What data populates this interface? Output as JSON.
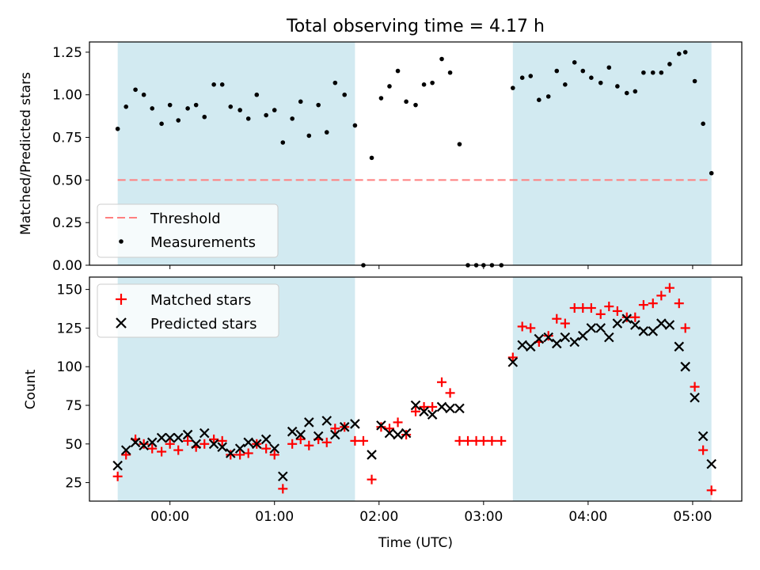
{
  "figure": {
    "title": "Total observing time = 4.17 h",
    "xlabel": "Time (UTC)",
    "x_tick_labels": [
      "00:00",
      "01:00",
      "02:00",
      "03:00",
      "04:00",
      "05:00"
    ],
    "x_ticks_hours": [
      0,
      1,
      2,
      3,
      4,
      5
    ],
    "xlim_hours": [
      -0.77,
      5.47
    ],
    "shaded_color": "#add8e6",
    "shaded_intervals_hours": [
      [
        -0.5,
        1.77
      ],
      [
        3.28,
        5.18
      ]
    ]
  },
  "chart_data": [
    {
      "type": "scatter",
      "ylabel": "Matched/Predicted stars",
      "ylim": [
        0,
        1.31
      ],
      "yticks": [
        0,
        0.25,
        0.5,
        0.75,
        1.0,
        1.25
      ],
      "ytick_labels": [
        "0.00",
        "0.25",
        "0.50",
        "0.75",
        "1.00",
        "1.25"
      ],
      "legend_position": "lower-left",
      "threshold": {
        "name": "Threshold",
        "value": 0.5,
        "color": "#ff7f7f",
        "style": "dashed"
      },
      "series": [
        {
          "name": "Measurements",
          "color": "#000000",
          "marker": "dot",
          "x": [
            -0.5,
            -0.42,
            -0.33,
            -0.25,
            -0.17,
            -0.08,
            0.0,
            0.08,
            0.17,
            0.25,
            0.33,
            0.42,
            0.5,
            0.58,
            0.67,
            0.75,
            0.83,
            0.92,
            1.0,
            1.08,
            1.17,
            1.25,
            1.33,
            1.42,
            1.5,
            1.58,
            1.67,
            1.77,
            1.85,
            1.93,
            2.02,
            2.1,
            2.18,
            2.26,
            2.35,
            2.43,
            2.51,
            2.6,
            2.68,
            2.77,
            2.85,
            2.93,
            3.0,
            3.08,
            3.17,
            3.28,
            3.37,
            3.45,
            3.53,
            3.62,
            3.7,
            3.78,
            3.87,
            3.95,
            4.03,
            4.12,
            4.2,
            4.28,
            4.37,
            4.45,
            4.53,
            4.62,
            4.7,
            4.78,
            4.87,
            4.93,
            5.02,
            5.1,
            5.18
          ],
          "y": [
            0.8,
            0.93,
            1.03,
            1.0,
            0.92,
            0.83,
            0.94,
            0.85,
            0.92,
            0.94,
            0.87,
            1.06,
            1.06,
            0.93,
            0.91,
            0.86,
            1.0,
            0.88,
            0.91,
            0.72,
            0.86,
            0.96,
            0.76,
            0.94,
            0.78,
            1.07,
            1.0,
            0.82,
            0.0,
            0.63,
            0.98,
            1.05,
            1.14,
            0.96,
            0.94,
            1.06,
            1.07,
            1.21,
            1.13,
            0.71,
            0.0,
            0.0,
            0.0,
            0.0,
            0.0,
            1.04,
            1.1,
            1.11,
            0.97,
            0.99,
            1.14,
            1.06,
            1.19,
            1.14,
            1.1,
            1.07,
            1.16,
            1.05,
            1.01,
            1.02,
            1.13,
            1.13,
            1.13,
            1.18,
            1.24,
            1.25,
            1.08,
            0.83,
            0.54
          ]
        }
      ]
    },
    {
      "type": "scatter",
      "ylabel": "Count",
      "ylim": [
        13,
        158
      ],
      "yticks": [
        25,
        50,
        75,
        100,
        125,
        150
      ],
      "ytick_labels": [
        "25",
        "50",
        "75",
        "100",
        "125",
        "150"
      ],
      "legend_position": "upper-left",
      "series": [
        {
          "name": "Matched stars",
          "color": "#ff0000",
          "marker": "plus",
          "x": [
            -0.5,
            -0.42,
            -0.33,
            -0.25,
            -0.17,
            -0.08,
            0.0,
            0.08,
            0.17,
            0.25,
            0.33,
            0.42,
            0.5,
            0.58,
            0.67,
            0.75,
            0.83,
            0.92,
            1.0,
            1.08,
            1.17,
            1.25,
            1.33,
            1.42,
            1.5,
            1.58,
            1.67,
            1.77,
            1.85,
            1.93,
            2.02,
            2.1,
            2.18,
            2.26,
            2.35,
            2.43,
            2.51,
            2.6,
            2.68,
            2.77,
            2.85,
            2.93,
            3.0,
            3.08,
            3.17,
            3.28,
            3.37,
            3.45,
            3.53,
            3.62,
            3.7,
            3.78,
            3.87,
            3.95,
            4.03,
            4.12,
            4.2,
            4.28,
            4.37,
            4.45,
            4.53,
            4.62,
            4.7,
            4.78,
            4.87,
            4.93,
            5.02,
            5.1,
            5.18
          ],
          "y": [
            29,
            43,
            53,
            50,
            47,
            45,
            50,
            46,
            52,
            48,
            50,
            53,
            52,
            43,
            43,
            44,
            50,
            47,
            43,
            21,
            50,
            53,
            49,
            53,
            51,
            60,
            61,
            52,
            52,
            27,
            61,
            60,
            64,
            56,
            71,
            74,
            74,
            90,
            83,
            52,
            52,
            52,
            52,
            52,
            52,
            106,
            126,
            125,
            116,
            120,
            131,
            128,
            138,
            138,
            138,
            134,
            139,
            136,
            132,
            132,
            140,
            141,
            146,
            151,
            141,
            125,
            87,
            46,
            20
          ]
        },
        {
          "name": "Predicted stars",
          "color": "#000000",
          "marker": "x",
          "x": [
            -0.5,
            -0.42,
            -0.33,
            -0.25,
            -0.17,
            -0.08,
            0.0,
            0.08,
            0.17,
            0.25,
            0.33,
            0.42,
            0.5,
            0.58,
            0.67,
            0.75,
            0.83,
            0.92,
            1.0,
            1.08,
            1.17,
            1.25,
            1.33,
            1.42,
            1.5,
            1.58,
            1.67,
            1.77,
            1.93,
            2.02,
            2.1,
            2.18,
            2.26,
            2.35,
            2.43,
            2.51,
            2.6,
            2.68,
            2.77,
            3.28,
            3.37,
            3.45,
            3.53,
            3.62,
            3.7,
            3.78,
            3.87,
            3.95,
            4.03,
            4.12,
            4.2,
            4.28,
            4.37,
            4.45,
            4.53,
            4.62,
            4.7,
            4.78,
            4.87,
            4.93,
            5.02,
            5.1,
            5.18
          ],
          "y": [
            36,
            46,
            51,
            49,
            51,
            54,
            54,
            54,
            56,
            50,
            57,
            50,
            48,
            44,
            47,
            51,
            50,
            53,
            47,
            29,
            58,
            56,
            64,
            55,
            65,
            56,
            61,
            63,
            43,
            62,
            57,
            56,
            57,
            75,
            71,
            69,
            74,
            73,
            73,
            103,
            114,
            113,
            118,
            119,
            115,
            119,
            116,
            120,
            125,
            125,
            119,
            128,
            131,
            127,
            123,
            123,
            128,
            127,
            113,
            100,
            80,
            55,
            37
          ]
        }
      ]
    }
  ]
}
